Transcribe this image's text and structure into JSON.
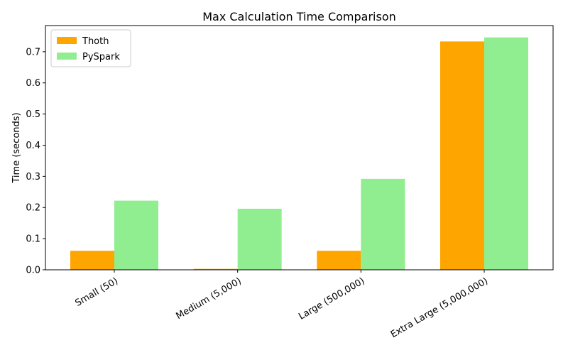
{
  "chart_data": {
    "type": "bar",
    "title": "Max Calculation Time Comparison",
    "xlabel": "",
    "ylabel": "Time (seconds)",
    "categories": [
      "Small (50)",
      "Medium (5,000)",
      "Large (500,000)",
      "Extra Large (5,000,000)"
    ],
    "series": [
      {
        "name": "Thoth",
        "color": "#ffa500",
        "values": [
          0.061,
          0.003,
          0.061,
          0.733
        ]
      },
      {
        "name": "PySpark",
        "color": "#90ee90",
        "values": [
          0.222,
          0.196,
          0.292,
          0.746
        ]
      }
    ],
    "ylim": [
      0,
      0.784
    ],
    "yticks": [
      0.0,
      0.1,
      0.2,
      0.3,
      0.4,
      0.5,
      0.6,
      0.7
    ],
    "ytick_labels": [
      "0.0",
      "0.1",
      "0.2",
      "0.3",
      "0.4",
      "0.5",
      "0.6",
      "0.7"
    ],
    "grid": false,
    "legend_position": "upper-left"
  }
}
